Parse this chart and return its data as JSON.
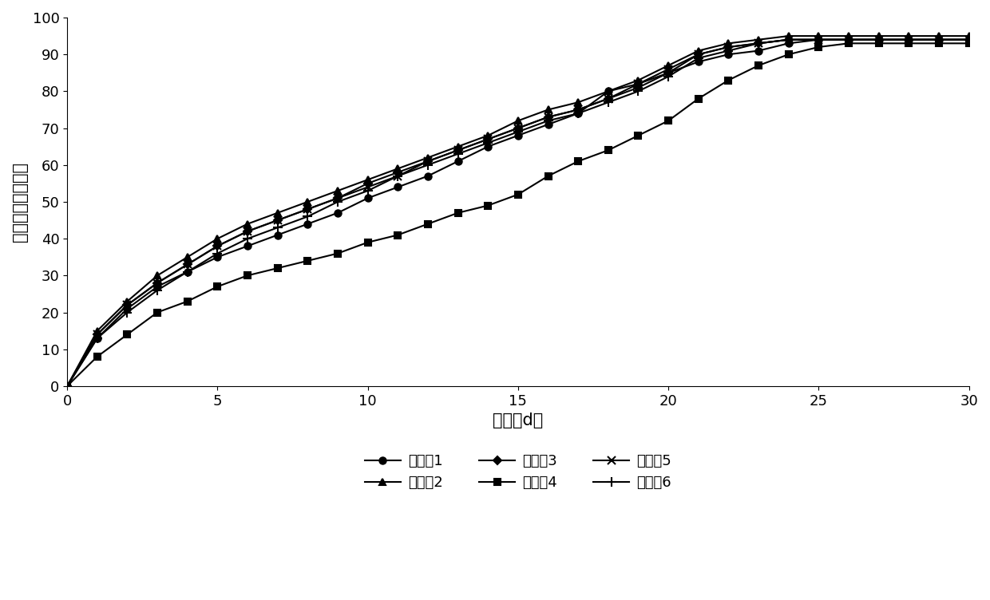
{
  "title": "",
  "xlabel": "时间（d）",
  "ylabel": "累积释放率（％）",
  "xlim": [
    0,
    30
  ],
  "ylim": [
    0,
    100
  ],
  "xticks": [
    0,
    5,
    10,
    15,
    20,
    25,
    30
  ],
  "yticks": [
    0,
    10,
    20,
    30,
    40,
    50,
    60,
    70,
    80,
    90,
    100
  ],
  "background_color": "#ffffff",
  "series": [
    {
      "label": "实施例1",
      "marker": "o",
      "color": "#000000",
      "linewidth": 1.5,
      "markersize": 6,
      "x": [
        0,
        1,
        2,
        3,
        4,
        5,
        6,
        7,
        8,
        9,
        10,
        11,
        12,
        13,
        14,
        15,
        16,
        17,
        18,
        19,
        20,
        21,
        22,
        23,
        24,
        25,
        26,
        27,
        28,
        29,
        30
      ],
      "y": [
        0,
        13,
        21,
        27,
        31,
        35,
        38,
        41,
        44,
        47,
        51,
        54,
        57,
        61,
        65,
        68,
        71,
        74,
        80,
        82,
        85,
        88,
        90,
        91,
        93,
        94,
        94,
        94,
        94,
        94,
        94
      ]
    },
    {
      "label": "实施例2",
      "marker": "^",
      "color": "#000000",
      "linewidth": 1.5,
      "markersize": 6,
      "x": [
        0,
        1,
        2,
        3,
        4,
        5,
        6,
        7,
        8,
        9,
        10,
        11,
        12,
        13,
        14,
        15,
        16,
        17,
        18,
        19,
        20,
        21,
        22,
        23,
        24,
        25,
        26,
        27,
        28,
        29,
        30
      ],
      "y": [
        0,
        15,
        23,
        30,
        35,
        40,
        44,
        47,
        50,
        53,
        56,
        59,
        62,
        65,
        68,
        72,
        75,
        77,
        80,
        83,
        87,
        91,
        93,
        94,
        95,
        95,
        95,
        95,
        95,
        95,
        95
      ]
    },
    {
      "label": "实施例3",
      "marker": "D",
      "color": "#000000",
      "linewidth": 1.5,
      "markersize": 5,
      "x": [
        0,
        1,
        2,
        3,
        4,
        5,
        6,
        7,
        8,
        9,
        10,
        11,
        12,
        13,
        14,
        15,
        16,
        17,
        18,
        19,
        20,
        21,
        22,
        23,
        24,
        25,
        26,
        27,
        28,
        29,
        30
      ],
      "y": [
        0,
        14,
        22,
        28,
        33,
        38,
        42,
        45,
        48,
        51,
        55,
        58,
        61,
        64,
        67,
        70,
        73,
        75,
        78,
        81,
        85,
        90,
        92,
        93,
        94,
        94,
        94,
        94,
        94,
        94,
        94
      ]
    },
    {
      "label": "实施例4",
      "marker": "s",
      "color": "#000000",
      "linewidth": 1.5,
      "markersize": 6,
      "x": [
        0,
        1,
        2,
        3,
        4,
        5,
        6,
        7,
        8,
        9,
        10,
        11,
        12,
        13,
        14,
        15,
        16,
        17,
        18,
        19,
        20,
        21,
        22,
        23,
        24,
        25,
        26,
        27,
        28,
        29,
        30
      ],
      "y": [
        0,
        8,
        14,
        20,
        23,
        27,
        30,
        32,
        34,
        36,
        39,
        41,
        44,
        47,
        49,
        52,
        57,
        61,
        64,
        68,
        72,
        78,
        83,
        87,
        90,
        92,
        93,
        93,
        93,
        93,
        93
      ]
    },
    {
      "label": "实施例5",
      "marker": "x",
      "color": "#000000",
      "linewidth": 1.5,
      "markersize": 7,
      "x": [
        0,
        1,
        2,
        3,
        4,
        5,
        6,
        7,
        8,
        9,
        10,
        11,
        12,
        13,
        14,
        15,
        16,
        17,
        18,
        19,
        20,
        21,
        22,
        23,
        24,
        25,
        26,
        27,
        28,
        29,
        30
      ],
      "y": [
        0,
        14,
        22,
        28,
        33,
        38,
        42,
        45,
        48,
        51,
        54,
        57,
        61,
        64,
        67,
        70,
        73,
        75,
        78,
        82,
        86,
        90,
        92,
        93,
        94,
        94,
        94,
        94,
        94,
        94,
        94
      ]
    },
    {
      "label": "实施例6",
      "marker": "+",
      "color": "#000000",
      "linewidth": 1.5,
      "markersize": 8,
      "x": [
        0,
        1,
        2,
        3,
        4,
        5,
        6,
        7,
        8,
        9,
        10,
        11,
        12,
        13,
        14,
        15,
        16,
        17,
        18,
        19,
        20,
        21,
        22,
        23,
        24,
        25,
        26,
        27,
        28,
        29,
        30
      ],
      "y": [
        0,
        13,
        20,
        26,
        31,
        36,
        40,
        43,
        46,
        50,
        53,
        57,
        60,
        63,
        66,
        69,
        72,
        74,
        77,
        80,
        84,
        89,
        91,
        93,
        94,
        94,
        94,
        94,
        94,
        94,
        94
      ]
    }
  ],
  "legend_ncol": 3,
  "legend_fontsize": 13,
  "axis_fontsize": 15,
  "tick_fontsize": 13
}
